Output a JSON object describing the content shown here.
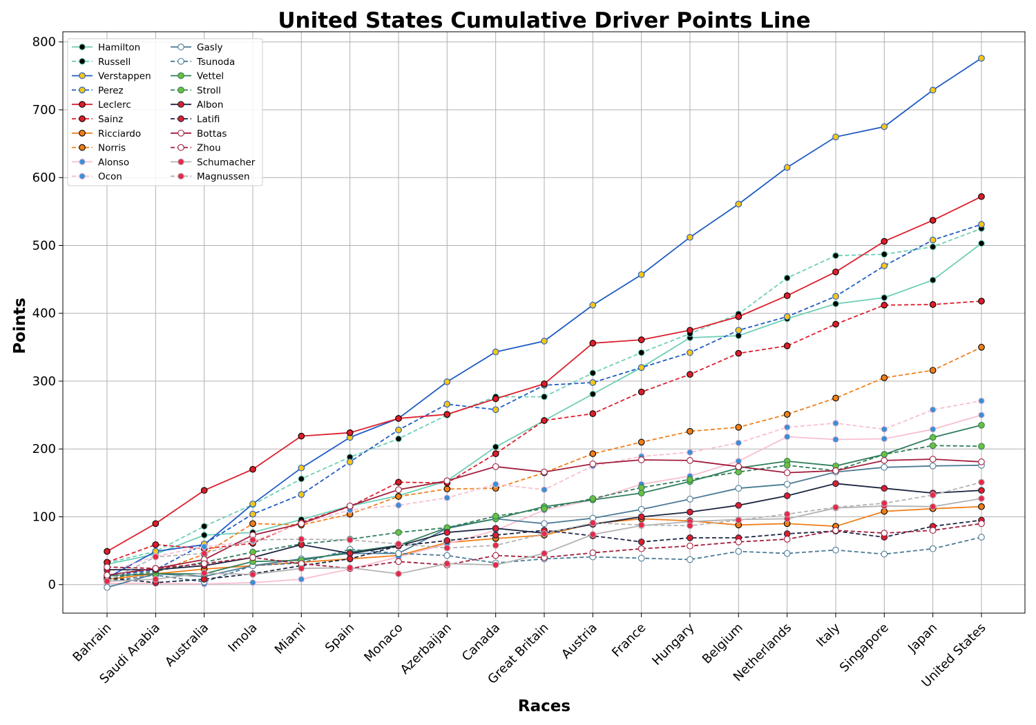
{
  "chart_data": {
    "type": "line",
    "title": "United States Cumulative Driver Points Line",
    "xlabel": "Races",
    "ylabel": "Points",
    "categories": [
      "Bahrain",
      "Saudi Arabia",
      "Australia",
      "Imola",
      "Miami",
      "Spain",
      "Monaco",
      "Azerbaijan",
      "Canada",
      "Great Britain",
      "Austria",
      "France",
      "Hungary",
      "Belgium",
      "Netherlands",
      "Italy",
      "Singapore",
      "Japan",
      "United States"
    ],
    "ylim": [
      -42,
      815
    ],
    "yticks": [
      0,
      100,
      200,
      300,
      400,
      500,
      600,
      700,
      800
    ],
    "grid": true,
    "legend_position": "top-left",
    "series": [
      {
        "name": "Hamilton",
        "color": "#6dcfb6",
        "marker_face": "#000000",
        "marker_edge": "#6dcfb6",
        "dash": false,
        "values": [
          30,
          45,
          73,
          77,
          96,
          116,
          131,
          153,
          203,
          242,
          281,
          320,
          364,
          367,
          392,
          414,
          423,
          449,
          503
        ]
      },
      {
        "name": "Russell",
        "color": "#6dcfb6",
        "marker_face": "#000000",
        "marker_edge": "#6dcfb6",
        "dash": true,
        "values": [
          32,
          49,
          86,
          118,
          156,
          188,
          215,
          250,
          277,
          277,
          312,
          342,
          370,
          399,
          452,
          485,
          487,
          498,
          525
        ]
      },
      {
        "name": "Verstappen",
        "color": "#1f5bc2",
        "marker_face": "#f5c518",
        "marker_edge": "#1f5bc2",
        "dash": false,
        "values": [
          10,
          49,
          59,
          119,
          172,
          217,
          245,
          299,
          343,
          359,
          412,
          457,
          512,
          561,
          615,
          660,
          675,
          729,
          776
        ]
      },
      {
        "name": "Perez",
        "color": "#1f5bc2",
        "marker_face": "#f5c518",
        "marker_edge": "#1f5bc2",
        "dash": true,
        "values": [
          12,
          22,
          60,
          104,
          133,
          181,
          228,
          266,
          258,
          294,
          298,
          320,
          342,
          375,
          395,
          425,
          470,
          508,
          531
        ]
      },
      {
        "name": "Leclerc",
        "color": "#dc1e2b",
        "marker_face": "#dc1e2b",
        "marker_edge": "#000000",
        "dash": false,
        "values": [
          49,
          90,
          139,
          170,
          219,
          224,
          245,
          251,
          274,
          296,
          356,
          361,
          375,
          395,
          426,
          461,
          506,
          537,
          572
        ]
      },
      {
        "name": "Sainz",
        "color": "#dc1e2b",
        "marker_face": "#dc1e2b",
        "marker_edge": "#000000",
        "dash": true,
        "values": [
          33,
          59,
          53,
          61,
          92,
          115,
          151,
          150,
          193,
          242,
          252,
          284,
          310,
          341,
          352,
          384,
          412,
          413,
          418
        ]
      },
      {
        "name": "Ricciardo",
        "color": "#f07f1a",
        "marker_face": "#f07f1a",
        "marker_edge": "#000000",
        "dash": false,
        "values": [
          8,
          16,
          23,
          28,
          33,
          38,
          43,
          62,
          68,
          73,
          90,
          97,
          94,
          88,
          90,
          86,
          108,
          112,
          115
        ]
      },
      {
        "name": "Norris",
        "color": "#f07f1a",
        "marker_face": "#f07f1a",
        "marker_edge": "#000000",
        "dash": true,
        "values": [
          6,
          18,
          45,
          90,
          88,
          104,
          130,
          141,
          142,
          165,
          193,
          210,
          226,
          232,
          251,
          275,
          305,
          316,
          350
        ]
      },
      {
        "name": "Alonso",
        "color": "#f7bfd0",
        "marker_face": "#3a8fd6",
        "marker_edge": "#f7bfd0",
        "dash": false,
        "values": [
          2,
          2,
          1,
          3,
          8,
          23,
          41,
          60,
          80,
          110,
          125,
          148,
          160,
          182,
          218,
          214,
          215,
          229,
          250
        ]
      },
      {
        "name": "Ocon",
        "color": "#f7bfd0",
        "marker_face": "#3a8fd6",
        "marker_edge": "#f7bfd0",
        "dash": true,
        "values": [
          18,
          42,
          56,
          64,
          90,
          110,
          117,
          128,
          148,
          140,
          175,
          189,
          195,
          209,
          232,
          238,
          229,
          258,
          271
        ]
      },
      {
        "name": "Gasly",
        "color": "#4a7a96",
        "marker_face": "#ffffff",
        "marker_edge": "#4a7a96",
        "dash": false,
        "values": [
          -4,
          16,
          12,
          28,
          38,
          46,
          46,
          83,
          97,
          90,
          98,
          111,
          126,
          142,
          148,
          166,
          173,
          175,
          176
        ]
      },
      {
        "name": "Tsunoda",
        "color": "#4a7a96",
        "marker_face": "#ffffff",
        "marker_edge": "#4a7a96",
        "dash": true,
        "values": [
          5,
          14,
          4,
          28,
          32,
          52,
          46,
          43,
          32,
          38,
          41,
          39,
          37,
          49,
          46,
          51,
          45,
          53,
          70
        ]
      },
      {
        "name": "Vettel",
        "color": "#2e7d5a",
        "marker_face": "#6dbf3f",
        "marker_edge": "#2e7d5a",
        "dash": false,
        "values": [
          13,
          16,
          16,
          34,
          36,
          48,
          58,
          84,
          97,
          115,
          125,
          135,
          152,
          172,
          182,
          175,
          192,
          217,
          235
        ]
      },
      {
        "name": "Stroll",
        "color": "#2e7d5a",
        "marker_face": "#6dbf3f",
        "marker_edge": "#2e7d5a",
        "dash": true,
        "values": [
          9,
          20,
          33,
          48,
          60,
          67,
          77,
          84,
          101,
          112,
          127,
          143,
          155,
          166,
          176,
          168,
          192,
          205,
          204
        ]
      },
      {
        "name": "Albon",
        "color": "#1c2440",
        "marker_face": "#dc1e2b",
        "marker_edge": "#1c2440",
        "dash": false,
        "values": [
          22,
          22,
          28,
          40,
          59,
          46,
          57,
          77,
          83,
          76,
          89,
          100,
          107,
          117,
          131,
          149,
          142,
          135,
          139
        ]
      },
      {
        "name": "Latifi",
        "color": "#1c2440",
        "marker_face": "#dc1e2b",
        "marker_edge": "#1c2440",
        "dash": true,
        "values": [
          10,
          3,
          8,
          16,
          28,
          38,
          57,
          65,
          73,
          80,
          72,
          63,
          69,
          69,
          75,
          79,
          70,
          86,
          95
        ]
      },
      {
        "name": "Bottas",
        "color": "#a01c3c",
        "marker_face": "#ffffff",
        "marker_edge": "#a01c3c",
        "dash": false,
        "values": [
          14,
          24,
          37,
          73,
          90,
          116,
          140,
          153,
          174,
          166,
          178,
          184,
          183,
          174,
          165,
          168,
          183,
          185,
          181
        ]
      },
      {
        "name": "Zhou",
        "color": "#a01c3c",
        "marker_face": "#ffffff",
        "marker_edge": "#a01c3c",
        "dash": true,
        "values": [
          26,
          24,
          31,
          40,
          31,
          24,
          34,
          29,
          43,
          40,
          47,
          53,
          57,
          63,
          67,
          80,
          76,
          80,
          90
        ]
      },
      {
        "name": "Schumacher",
        "color": "#b3b3b3",
        "marker_face": "#e8274b",
        "marker_edge": "#b3b3b3",
        "dash": false,
        "values": [
          5,
          8,
          17,
          15,
          24,
          25,
          16,
          31,
          29,
          46,
          74,
          87,
          93,
          96,
          97,
          113,
          116,
          115,
          127
        ]
      },
      {
        "name": "Magnussen",
        "color": "#b3b3b3",
        "marker_face": "#e8274b",
        "marker_edge": "#b3b3b3",
        "dash": true,
        "values": [
          5,
          41,
          46,
          66,
          67,
          66,
          60,
          54,
          58,
          75,
          91,
          88,
          87,
          95,
          104,
          114,
          120,
          132,
          151
        ]
      }
    ]
  }
}
